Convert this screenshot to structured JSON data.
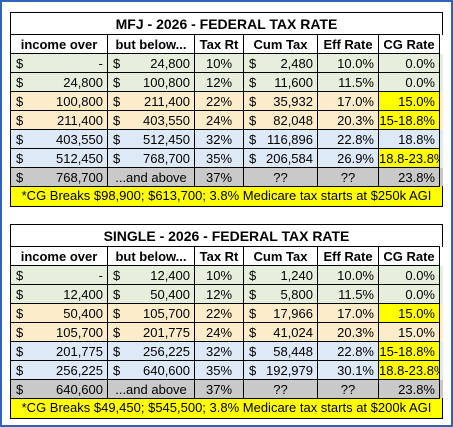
{
  "headers": [
    "income over",
    "but below...",
    "Tax Rt",
    "Cum Tax",
    "Eff Rate",
    "CG Rate"
  ],
  "mfj": {
    "title": "MFJ - 2026 - FEDERAL TAX RATE",
    "rows": [
      {
        "over": "-",
        "below": "24,800",
        "rate": "10%",
        "cum": "2,480",
        "eff": "10.0%",
        "cg": "0.0%",
        "band": "g",
        "cg_hl": false
      },
      {
        "over": "24,800",
        "below": "100,800",
        "rate": "12%",
        "cum": "11,600",
        "eff": "11.5%",
        "cg": "0.0%",
        "band": "g",
        "cg_hl": false
      },
      {
        "over": "100,800",
        "below": "211,400",
        "rate": "22%",
        "cum": "35,932",
        "eff": "17.0%",
        "cg": "15.0%",
        "band": "o",
        "cg_hl": true
      },
      {
        "over": "211,400",
        "below": "403,550",
        "rate": "24%",
        "cum": "82,048",
        "eff": "20.3%",
        "cg": "15-18.8%",
        "band": "o",
        "cg_hl": true
      },
      {
        "over": "403,550",
        "below": "512,450",
        "rate": "32%",
        "cum": "116,896",
        "eff": "22.8%",
        "cg": "18.8%",
        "band": "b",
        "cg_hl": false
      },
      {
        "over": "512,450",
        "below": "768,700",
        "rate": "35%",
        "cum": "206,584",
        "eff": "26.9%",
        "cg": "18.8-23.8%",
        "band": "b",
        "cg_hl": true
      }
    ],
    "last": {
      "over": "768,700",
      "below": "...and above",
      "rate": "37%",
      "cum": "??",
      "eff": "??",
      "cg": "23.8%"
    },
    "note": "*CG Breaks $98,900; $613,700; 3.8% Medicare tax starts at $250k AGI"
  },
  "single": {
    "title": "SINGLE - 2026 - FEDERAL TAX RATE",
    "rows": [
      {
        "over": "-",
        "below": "12,400",
        "rate": "10%",
        "cum": "1,240",
        "eff": "10.0%",
        "cg": "0.0%",
        "band": "g",
        "cg_hl": false
      },
      {
        "over": "12,400",
        "below": "50,400",
        "rate": "12%",
        "cum": "5,800",
        "eff": "11.5%",
        "cg": "0.0%",
        "band": "g",
        "cg_hl": false
      },
      {
        "over": "50,400",
        "below": "105,700",
        "rate": "22%",
        "cum": "17,966",
        "eff": "17.0%",
        "cg": "15.0%",
        "band": "o",
        "cg_hl": true
      },
      {
        "over": "105,700",
        "below": "201,775",
        "rate": "24%",
        "cum": "41,024",
        "eff": "20.3%",
        "cg": "15.0%",
        "band": "o",
        "cg_hl": false
      },
      {
        "over": "201,775",
        "below": "256,225",
        "rate": "32%",
        "cum": "58,448",
        "eff": "22.8%",
        "cg": "15-18.8%",
        "band": "b",
        "cg_hl": true
      },
      {
        "over": "256,225",
        "below": "640,600",
        "rate": "35%",
        "cum": "192,979",
        "eff": "30.1%",
        "cg": "18.8-23.8%",
        "band": "b",
        "cg_hl": true
      }
    ],
    "last": {
      "over": "640,600",
      "below": "...and above",
      "rate": "37%",
      "cum": "??",
      "eff": "??",
      "cg": "23.8%"
    },
    "note": "*CG Breaks $49,450; $545,500; 3.8% Medicare tax starts at $200k AGI"
  },
  "currency_symbol": "$",
  "colors": {
    "green": "#e6efdc",
    "orange": "#fcecc9",
    "blue": "#dde9f7",
    "gray": "#c9c9c9",
    "highlight": "#ffff00",
    "border": "#2f63b8"
  }
}
